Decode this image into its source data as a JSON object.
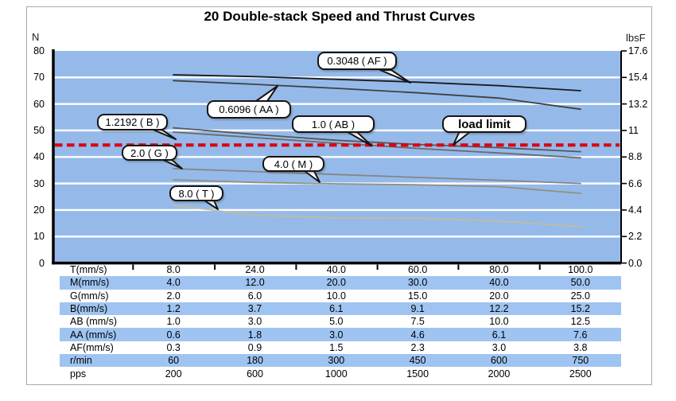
{
  "title": "20 Double-stack Speed and Thrust Curves",
  "chart_data": {
    "type": "line",
    "title": "20 Double-stack Speed and Thrust Curves",
    "x_axis": {
      "tick_labels": [
        "8.0",
        "24.0",
        "40.0",
        "60.0",
        "80.0",
        "100.0"
      ],
      "note": "x tick labels are the T(mm/s) row of the table; each series has its own speed row"
    },
    "y_axis_left": {
      "unit": "N",
      "min": 0,
      "max": 80,
      "ticks": [
        80,
        70,
        60,
        50,
        40,
        30,
        20,
        10,
        0
      ]
    },
    "y_axis_right": {
      "unit": "lbsF",
      "ticks": [
        "17.6",
        "15.4",
        "13.2",
        "11",
        "8.8",
        "6.6",
        "4.4",
        "2.2",
        "0.0"
      ]
    },
    "grid": "horizontal white lines every 10 N on blue background",
    "legend_position": "callout bubbles on curves",
    "load_limit": {
      "label": "load limit",
      "value_N": 44.5,
      "color": "#DD0010",
      "line_style": "dashed"
    },
    "series": [
      {
        "key": "AF",
        "label": "0.3048 ( AF )",
        "lead": "0.3048",
        "color": "#1c1c1c",
        "values_N": [
          71,
          70.3,
          69.3,
          68.2,
          66.9,
          65
        ]
      },
      {
        "key": "AA",
        "label": "0.6096 ( AA )",
        "lead": "0.6096",
        "color": "#404040",
        "values_N": [
          68.8,
          67.4,
          65.9,
          64.2,
          62.2,
          58
        ]
      },
      {
        "key": "AB",
        "label": "1.0 ( AB )",
        "lead": "1.0",
        "color": "#575757",
        "values_N": [
          51,
          48.5,
          46.3,
          44.7,
          43.5,
          42
        ]
      },
      {
        "key": "B",
        "label": "1.2192 ( B )",
        "lead": "1.2192",
        "color": "#6b6b6b",
        "values_N": [
          49.4,
          47.3,
          45.2,
          43.2,
          41.5,
          39.7
        ]
      },
      {
        "key": "G",
        "label": "2.0 ( G )",
        "lead": "2.0",
        "color": "#858585",
        "values_N": [
          35.6,
          34.5,
          33.4,
          32.3,
          31.2,
          30
        ]
      },
      {
        "key": "M",
        "label": "4.0 ( M )",
        "lead": "4.0",
        "color": "#93907f",
        "values_N": [
          31.4,
          30.4,
          29.9,
          29.5,
          28.8,
          26.3
        ]
      },
      {
        "key": "T",
        "label": "8.0 ( T )",
        "lead": "8.0",
        "color": "#c2bb9e",
        "values_N": [
          21.8,
          18,
          17,
          16.9,
          15.8,
          13.7
        ]
      }
    ]
  },
  "table": {
    "rows": [
      {
        "label": "T(mm/s)",
        "values": [
          "8.0",
          "24.0",
          "40.0",
          "60.0",
          "80.0",
          "100.0"
        ]
      },
      {
        "label": "M(mm/s)",
        "values": [
          "4.0",
          "12.0",
          "20.0",
          "30.0",
          "40.0",
          "50.0"
        ]
      },
      {
        "label": "G(mm/s)",
        "values": [
          "2.0",
          "6.0",
          "10.0",
          "15.0",
          "20.0",
          "25.0"
        ]
      },
      {
        "label": "B(mm/s)",
        "values": [
          "1.2",
          "3.7",
          "6.1",
          "9.1",
          "12.2",
          "15.2"
        ]
      },
      {
        "label": "AB (mm/s)",
        "values": [
          "1.0",
          "3.0",
          "5.0",
          "7.5",
          "10.0",
          "12.5"
        ]
      },
      {
        "label": "AA (mm/s)",
        "values": [
          "0.6",
          "1.8",
          "3.0",
          "4.6",
          "6.1",
          "7.6"
        ]
      },
      {
        "label": "AF(mm/s)",
        "values": [
          "0.3",
          "0.9",
          "1.5",
          "2.3",
          "3.0",
          "3.8"
        ]
      },
      {
        "label": "r/min",
        "values": [
          "60",
          "180",
          "300",
          "450",
          "600",
          "750"
        ]
      },
      {
        "label": "pps",
        "values": [
          "200",
          "600",
          "1000",
          "1500",
          "2000",
          "2500"
        ]
      }
    ],
    "alt_row_color": "#9FC4F1"
  },
  "colors": {
    "plot_background": "#95BAEA",
    "gridline": "#ffffff",
    "axis": "#000000",
    "panel_border": "#a9a9a9",
    "load_limit_red": "#DD0010"
  }
}
